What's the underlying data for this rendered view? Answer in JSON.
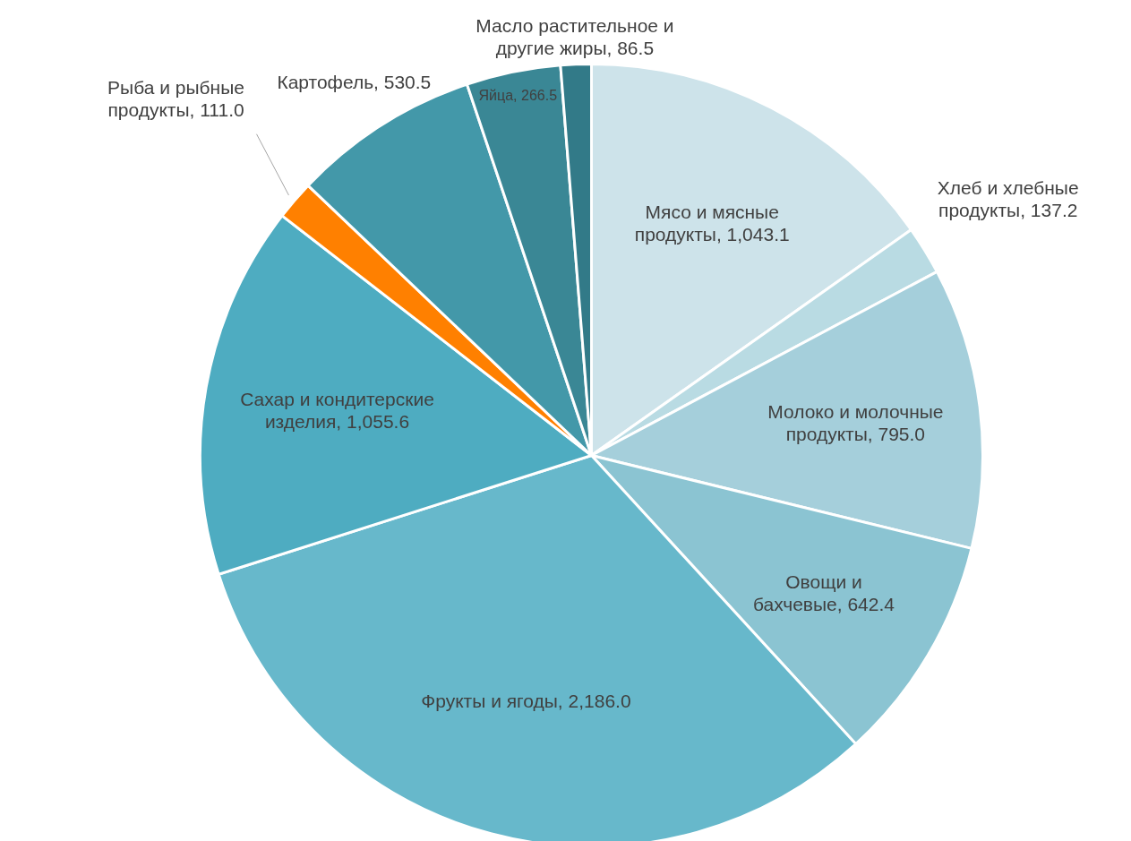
{
  "chart_data": {
    "type": "pie",
    "categories": [
      "Мясо и мясные продукты",
      "Хлеб и хлебные продукты",
      "Молоко и молочные продукты",
      "Овощи и бахчевые",
      "Фрукты и ягоды",
      "Сахар и кондитерские изделия",
      "Рыба и рыбные продукты",
      "Картофель",
      "Яйца",
      "Масло растительное и другие жиры"
    ],
    "values": [
      1043.1,
      137.2,
      795.0,
      642.4,
      2186.0,
      1055.6,
      111.0,
      530.5,
      266.5,
      86.5
    ],
    "colors": [
      "#cde3ea",
      "#b9dbe3",
      "#a5cfdb",
      "#8bc4d2",
      "#67b8cb",
      "#4eacc1",
      "#ff8000",
      "#4398a9",
      "#3a8795",
      "#327a88"
    ],
    "value_labels": [
      "1,043.1",
      "137.2",
      "795.0",
      "642.4",
      "2,186.0",
      "1,055.6",
      "111.0",
      "530.5",
      "266.5",
      "86.5"
    ]
  }
}
